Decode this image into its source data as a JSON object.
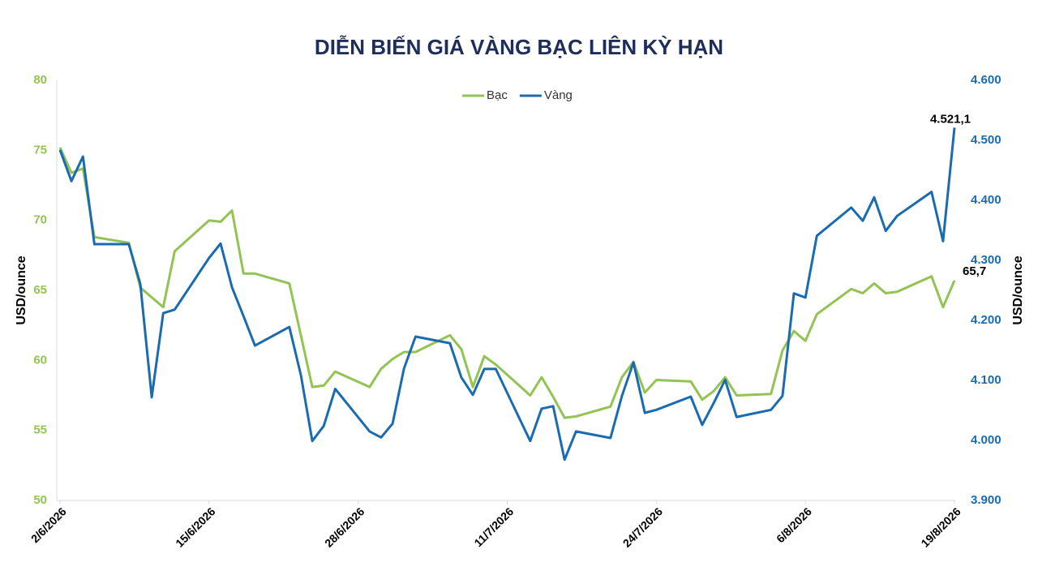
{
  "chart_data": {
    "type": "line",
    "title": "DIỄN BIẾN GIÁ VÀNG BẠC LIÊN KỲ HẠN",
    "y_label": "USD/ounce",
    "y2_label": "USD/ounce",
    "x": [
      "2/6/2026",
      "3/6/2026",
      "4/6/2026",
      "5/6/2026",
      "8/6/2026",
      "9/6/2026",
      "10/6/2026",
      "11/6/2026",
      "12/6/2026",
      "15/6/2026",
      "16/6/2026",
      "17/6/2026",
      "18/6/2026",
      "19/6/2026",
      "22/6/2026",
      "23/6/2026",
      "24/6/2026",
      "25/6/2026",
      "26/6/2026",
      "29/6/2026",
      "30/6/2026",
      "1/7/2026",
      "2/7/2026",
      "3/7/2026",
      "6/7/2026",
      "7/7/2026",
      "8/7/2026",
      "9/7/2026",
      "10/7/2026",
      "13/7/2026",
      "14/7/2026",
      "15/7/2026",
      "16/7/2026",
      "17/7/2026",
      "20/7/2026",
      "21/7/2026",
      "22/7/2026",
      "23/7/2026",
      "24/7/2026",
      "27/7/2026",
      "28/7/2026",
      "29/7/2026",
      "30/7/2026",
      "31/7/2026",
      "3/8/2026",
      "4/8/2026",
      "5/8/2026",
      "6/8/2026",
      "7/8/2026",
      "10/8/2026",
      "11/8/2026",
      "12/8/2026",
      "13/8/2026",
      "14/8/2026",
      "17/8/2026",
      "18/8/2026",
      "19/8/2026"
    ],
    "xlim": [
      "2/6/2026",
      "19/8/2026"
    ],
    "xticks": [
      "2/6/2026",
      "15/6/2026",
      "28/6/2026",
      "11/7/2026",
      "24/7/2026",
      "6/8/2026",
      "19/8/2026"
    ],
    "series": [
      {
        "name": "Bạc",
        "color": "#92c353",
        "axis": "y",
        "values": [
          75.2,
          73.4,
          73.7,
          68.8,
          68.4,
          65.2,
          64.5,
          63.8,
          67.8,
          70.0,
          69.9,
          70.7,
          66.2,
          66.2,
          65.5,
          61.8,
          58.1,
          58.2,
          59.2,
          58.1,
          59.4,
          60.1,
          60.6,
          60.6,
          61.8,
          60.8,
          58.1,
          60.3,
          59.7,
          57.5,
          58.8,
          57.4,
          55.9,
          56.0,
          56.7,
          58.8,
          59.9,
          57.7,
          58.6,
          58.5,
          57.2,
          57.8,
          58.8,
          57.5,
          57.6,
          60.7,
          62.1,
          61.4,
          63.3,
          65.1,
          64.8,
          65.5,
          64.8,
          64.9,
          66.0,
          63.8,
          65.7
        ],
        "value_labels": [
          null,
          null,
          null,
          null,
          null,
          null,
          null,
          null,
          null,
          null,
          null,
          null,
          null,
          null,
          null,
          null,
          null,
          null,
          null,
          null,
          null,
          null,
          null,
          null,
          null,
          null,
          null,
          null,
          null,
          null,
          null,
          null,
          null,
          null,
          null,
          null,
          null,
          null,
          null,
          null,
          null,
          null,
          null,
          null,
          null,
          null,
          null,
          null,
          null,
          null,
          null,
          null,
          null,
          null,
          null,
          null,
          "65,7"
        ]
      },
      {
        "name": "Vàng",
        "color": "#1a6bb0",
        "axis": "y2",
        "values": [
          4484,
          4432,
          4473,
          4327,
          4327,
          4261,
          4072,
          4212,
          4218,
          4304,
          4328,
          4255,
          4207,
          4158,
          4189,
          4109,
          3999,
          4024,
          4086,
          4015,
          4005,
          4028,
          4120,
          4173,
          4162,
          4105,
          4076,
          4119,
          4119,
          3999,
          4053,
          4057,
          3968,
          4015,
          4004,
          4074,
          4130,
          4046,
          4051,
          4073,
          4026,
          4062,
          4101,
          4039,
          4051,
          4074,
          4245,
          4238,
          4341,
          4388,
          4366,
          4405,
          4349,
          4374,
          4414,
          4332,
          4521.1
        ],
        "value_labels": [
          null,
          null,
          null,
          null,
          null,
          null,
          null,
          null,
          null,
          null,
          null,
          null,
          null,
          null,
          null,
          null,
          null,
          null,
          null,
          null,
          null,
          null,
          null,
          null,
          null,
          null,
          null,
          null,
          null,
          null,
          null,
          null,
          null,
          null,
          null,
          null,
          null,
          null,
          null,
          null,
          null,
          null,
          null,
          null,
          null,
          null,
          null,
          null,
          null,
          null,
          null,
          null,
          null,
          null,
          null,
          null,
          "4.521,1"
        ]
      }
    ],
    "ylim": [
      50,
      80
    ],
    "yticks": [
      50,
      55,
      60,
      65,
      70,
      75,
      80
    ],
    "y2lim": [
      3900,
      4600
    ],
    "y2ticks": [
      {
        "value": 3900,
        "label": "3.900"
      },
      {
        "value": 4000,
        "label": "4.000"
      },
      {
        "value": 4100,
        "label": "4.100"
      },
      {
        "value": 4200,
        "label": "4.200"
      },
      {
        "value": 4300,
        "label": "4.300"
      },
      {
        "value": 4400,
        "label": "4.400"
      },
      {
        "value": 4500,
        "label": "4.500"
      },
      {
        "value": 4600,
        "label": "4.600"
      }
    ],
    "grid": false,
    "legend": "top"
  }
}
